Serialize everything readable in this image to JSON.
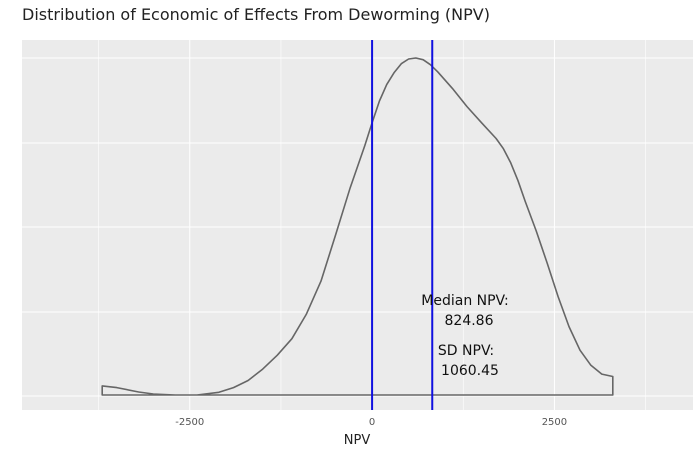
{
  "chart_data": {
    "type": "area",
    "title": "Distribution of Economic of Effects From Deworming (NPV)",
    "xlabel": "NPV",
    "ylabel": "",
    "xlim": [
      -4800,
      4400
    ],
    "x_ticks": [
      -2500,
      0,
      2500
    ],
    "x_tick_labels": [
      "-2500",
      "0",
      "2500"
    ],
    "grid": true,
    "background": "#ebebeb",
    "series": [
      {
        "x": [
          -3700,
          -3500,
          -3200,
          -3000,
          -2700,
          -2400,
          -2100,
          -1900,
          -1700,
          -1500,
          -1300,
          -1100,
          -900,
          -700,
          -500,
          -300,
          -100,
          0,
          100,
          200,
          300,
          400,
          500,
          600,
          700,
          800,
          900,
          1100,
          1300,
          1500,
          1700,
          1800,
          1900,
          2000,
          2100,
          2250,
          2400,
          2550,
          2700,
          2850,
          3000,
          3150,
          3300
        ],
        "y": [
          0.027,
          0.022,
          0.009,
          0.003,
          0.0,
          0.0,
          0.008,
          0.022,
          0.043,
          0.077,
          0.118,
          0.167,
          0.24,
          0.338,
          0.475,
          0.615,
          0.74,
          0.808,
          0.872,
          0.921,
          0.956,
          0.983,
          0.997,
          1.0,
          0.995,
          0.98,
          0.959,
          0.91,
          0.856,
          0.808,
          0.761,
          0.731,
          0.689,
          0.636,
          0.574,
          0.487,
          0.392,
          0.292,
          0.203,
          0.133,
          0.088,
          0.062,
          0.055
        ],
        "color": "#666666"
      }
    ],
    "vlines": [
      {
        "x": 0,
        "color": "#1010e0"
      },
      {
        "x": 824.86,
        "color": "#1010e0"
      }
    ],
    "annotations": [
      {
        "line1": "Median NPV:",
        "line2": "824.86"
      },
      {
        "line1": "SD NPV:",
        "line2": "1060.45"
      }
    ]
  }
}
